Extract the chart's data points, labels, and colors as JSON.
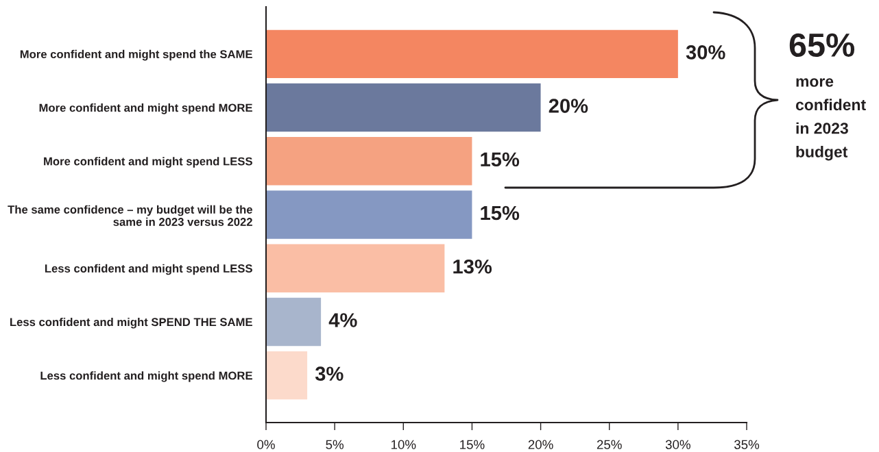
{
  "chart_data": {
    "type": "bar",
    "orientation": "horizontal",
    "categories": [
      "More confident and might spend the SAME",
      "More confident and might spend MORE",
      "More confident and might spend LESS",
      "The same confidence – my budget will be the same in 2023 versus 2022",
      "Less confident and might spend LESS",
      "Less confident and might SPEND THE SAME",
      "Less confident and might spend MORE"
    ],
    "values": [
      30,
      20,
      15,
      15,
      13,
      4,
      3
    ],
    "colors": [
      "#f48661",
      "#6b799d",
      "#f5a281",
      "#8598c2",
      "#fabea5",
      "#a8b5cc",
      "#fcdacb"
    ],
    "value_labels": [
      "30%",
      "20%",
      "15%",
      "15%",
      "13%",
      "4%",
      "3%"
    ],
    "xlim": [
      0,
      35
    ],
    "xticks": [
      {
        "value": 0,
        "label": "0%"
      },
      {
        "value": 5,
        "label": "5%"
      },
      {
        "value": 10,
        "label": "10%"
      },
      {
        "value": 15,
        "label": "15%"
      },
      {
        "value": 20,
        "label": "20%"
      },
      {
        "value": 25,
        "label": "25%"
      },
      {
        "value": 30,
        "label": "30%"
      },
      {
        "value": 35,
        "label": "35%"
      }
    ],
    "grid": false,
    "annotations": [
      "65%",
      "more confident in 2023 budget"
    ]
  }
}
